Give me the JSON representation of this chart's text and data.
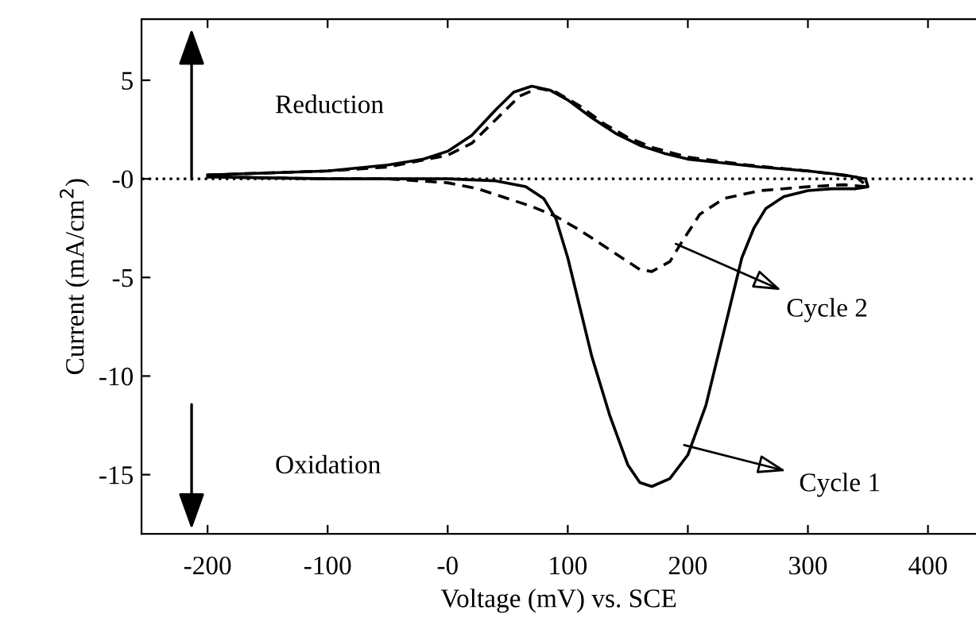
{
  "chart_data": {
    "type": "line",
    "xlabel": "Voltage (mV) vs. SCE",
    "ylabel": "Current (mA/cm$^{2}$)",
    "xlim": [
      -255,
      440
    ],
    "ylim": [
      -18,
      8.1
    ],
    "xticks": [
      -200,
      -100,
      {
        "value": 0,
        "label": "-0"
      },
      100,
      200,
      300,
      400
    ],
    "yticks": [
      -15,
      -10,
      -5,
      {
        "value": 0,
        "label": "-0"
      },
      5
    ],
    "grid": false,
    "legend": false,
    "marker": "none",
    "ref_lines": [
      {
        "axis": "y",
        "value": 0,
        "line_style": "dotted",
        "color": "#000000"
      }
    ],
    "annotations": [
      "Reduction",
      "Oxidation",
      {
        "text": "Cycle 2",
        "x": 190,
        "y": -3.3
      },
      {
        "text": "Cycle 1",
        "x": 197,
        "y": -13.5
      }
    ],
    "series": [
      {
        "color": "#000000",
        "line_style": "solid",
        "x": [
          -200,
          -150,
          -100,
          -50,
          -20,
          0,
          20,
          40,
          55,
          70,
          85,
          100,
          120,
          140,
          160,
          180,
          200,
          230,
          260,
          300,
          330,
          348,
          350,
          340,
          320,
          300,
          280,
          265,
          255,
          245,
          235,
          225,
          215,
          200,
          185,
          170,
          160,
          150,
          135,
          120,
          110,
          100,
          90,
          80,
          65,
          40,
          0,
          -100,
          -200
        ],
        "values": [
          0.2,
          0.3,
          0.4,
          0.7,
          1.0,
          1.4,
          2.2,
          3.5,
          4.4,
          4.7,
          4.5,
          4.0,
          3.1,
          2.3,
          1.7,
          1.3,
          1.0,
          0.8,
          0.6,
          0.4,
          0.2,
          0.0,
          -0.4,
          -0.5,
          -0.5,
          -0.6,
          -0.9,
          -1.5,
          -2.5,
          -4,
          -6.5,
          -9,
          -11.5,
          -14,
          -15.2,
          -15.6,
          -15.4,
          -14.5,
          -12,
          -9,
          -6.5,
          -4,
          -2,
          -1,
          -0.4,
          -0.1,
          0,
          0,
          0.1
        ]
      },
      {
        "color": "#000000",
        "line_style": "dashed",
        "x": [
          -200,
          -100,
          -50,
          0,
          20,
          40,
          60,
          75,
          90,
          110,
          130,
          150,
          170,
          200,
          250,
          300,
          340,
          350,
          330,
          300,
          260,
          230,
          210,
          195,
          185,
          170,
          160,
          145,
          130,
          110,
          90,
          70,
          50,
          25,
          0,
          -50,
          -100,
          -200
        ],
        "values": [
          0.2,
          0.4,
          0.6,
          1.2,
          1.8,
          3.0,
          4.2,
          4.6,
          4.4,
          3.7,
          2.8,
          2.1,
          1.6,
          1.1,
          0.7,
          0.4,
          0.1,
          -0.4,
          -0.3,
          -0.4,
          -0.6,
          -1.0,
          -1.8,
          -3.2,
          -4.2,
          -4.7,
          -4.6,
          -4.0,
          -3.4,
          -2.6,
          -1.9,
          -1.4,
          -1.0,
          -0.5,
          -0.2,
          0.0,
          0,
          0.1
        ]
      }
    ]
  }
}
